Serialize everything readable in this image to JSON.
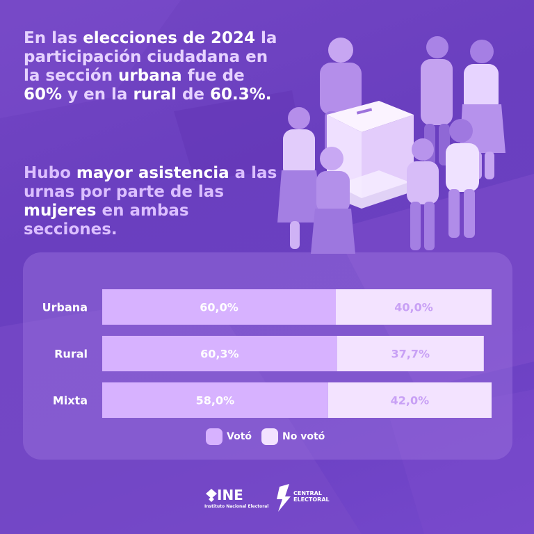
{
  "headline": {
    "p1": "En las ",
    "h1": "elecciones de 2024",
    "p2": " la participación ciudadana en la sección ",
    "h2": "urbana",
    "p3": " fue de ",
    "h3": "60%",
    "p4": " y en la ",
    "h4": "rural",
    "p5": " de ",
    "h5": "60.3%."
  },
  "subline": {
    "p1": "Hubo ",
    "h1": "mayor asistencia",
    "p2": " a las urnas por parte de las ",
    "h2": "mujeres",
    "p3": " en ambas secciones."
  },
  "chart_data": {
    "type": "bar",
    "orientation": "horizontal",
    "stacked": true,
    "categories": [
      "Urbana",
      "Rural",
      "Mixta"
    ],
    "series": [
      {
        "name": "Votó",
        "values": [
          60.0,
          60.3,
          58.0
        ],
        "labels": [
          "60,0%",
          "60,3%",
          "58,0%"
        ],
        "color": "#d7b2ff",
        "label_color": "#ffffff"
      },
      {
        "name": "No votó",
        "values": [
          40.0,
          37.7,
          42.0
        ],
        "labels": [
          "40,0%",
          "37,7%",
          "42,0%"
        ],
        "color": "#f3e3ff",
        "label_color": "#c8a0f5"
      }
    ],
    "xlim": [
      0,
      100
    ],
    "legend_position": "bottom",
    "grid": false
  },
  "legend": [
    {
      "label": "Votó",
      "color": "#d7b2ff"
    },
    {
      "label": "No votó",
      "color": "#f3e3ff"
    }
  ],
  "logos": {
    "ine": "INE",
    "ine_sub": "Instituto Nacional Electoral",
    "central": "CENTRAL",
    "electoral": "ELECTORAL"
  }
}
